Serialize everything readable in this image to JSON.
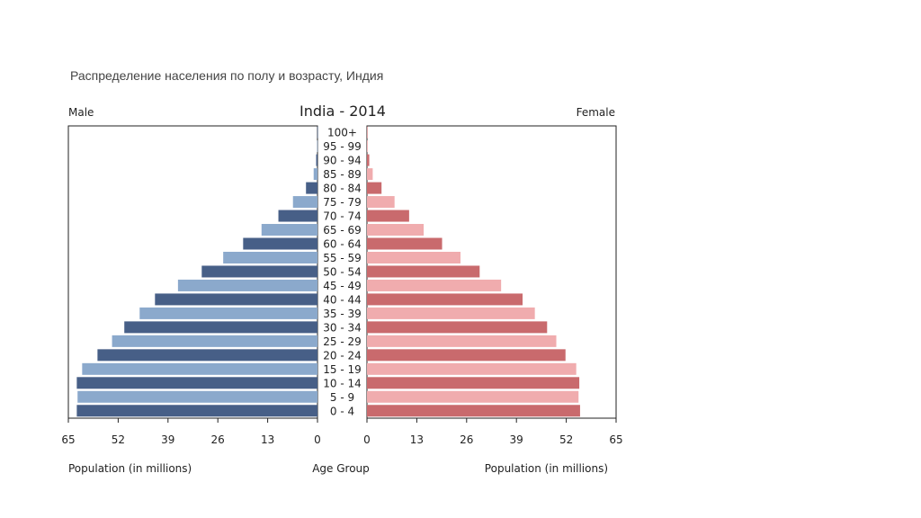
{
  "page": {
    "subtitle": "Распределение населения по полу и возрасту, Индия"
  },
  "chart_data": {
    "type": "bar",
    "title": "India - 2014",
    "left_label": "Male",
    "right_label": "Female",
    "xlabel_left": "Population (in millions)",
    "xlabel_right": "Population (in millions)",
    "center_label": "Age Group",
    "xlim": [
      0,
      65
    ],
    "xticks": [
      0,
      13,
      26,
      39,
      52,
      65
    ],
    "categories": [
      "0 - 4",
      "5 - 9",
      "10 - 14",
      "15 - 19",
      "20 - 24",
      "25 - 29",
      "30 - 34",
      "35 - 39",
      "40 - 44",
      "45 - 49",
      "50 - 54",
      "55 - 59",
      "60 - 64",
      "65 - 69",
      "70 - 74",
      "75 - 79",
      "80 - 84",
      "85 - 89",
      "90 - 94",
      "95 - 99",
      "100+"
    ],
    "series": [
      {
        "name": "Male",
        "values": [
          62.8,
          62.6,
          62.8,
          61.4,
          57.4,
          53.6,
          50.4,
          46.4,
          42.4,
          36.4,
          30.2,
          24.6,
          19.4,
          14.6,
          10.2,
          6.4,
          3.0,
          1.0,
          0.35,
          0.1,
          0.05
        ],
        "colors": {
          "dark": "#475f87",
          "light": "#8ba9cc"
        }
      },
      {
        "name": "Female",
        "values": [
          55.6,
          55.2,
          55.4,
          54.6,
          51.8,
          49.4,
          47.0,
          43.8,
          40.6,
          35.0,
          29.4,
          24.4,
          19.6,
          14.8,
          11.0,
          7.2,
          3.8,
          1.5,
          0.6,
          0.2,
          0.1
        ],
        "colors": {
          "dark": "#c96a6d",
          "light": "#f0acae"
        }
      }
    ]
  }
}
